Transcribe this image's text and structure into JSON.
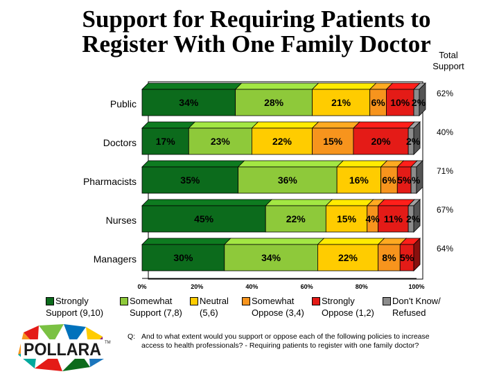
{
  "title_lines": [
    "Support for Requiring Patients to",
    "Register With One Family Doctor"
  ],
  "total_header_lines": [
    "Total",
    "Support"
  ],
  "chart_data": {
    "type": "bar",
    "orientation": "horizontal",
    "stacked": true,
    "categories": [
      "Public",
      "Doctors",
      "Pharmacists",
      "Nurses",
      "Managers"
    ],
    "series": [
      {
        "name": "Strongly Support (9,10)",
        "color": "#0c6b1c",
        "values": [
          34,
          17,
          35,
          45,
          30
        ],
        "labels": [
          "34%",
          "17%",
          "35%",
          "45%",
          "30%"
        ]
      },
      {
        "name": "Somewhat Support (7,8)",
        "color": "#8ec93a",
        "values": [
          28,
          23,
          36,
          22,
          34
        ],
        "labels": [
          "28%",
          "23%",
          "36%",
          "22%",
          "34%"
        ]
      },
      {
        "name": "Neutral (5,6)",
        "color": "#ffcc00",
        "values": [
          21,
          22,
          16,
          15,
          22
        ],
        "labels": [
          "21%",
          "22%",
          "16%",
          "15%",
          "22%"
        ]
      },
      {
        "name": "Somewhat Oppose (3,4)",
        "color": "#f7941d",
        "values": [
          6,
          15,
          6,
          4,
          8
        ],
        "labels": [
          "6%",
          "15%",
          "6%",
          "4%",
          "8%"
        ]
      },
      {
        "name": "Strongly Oppose (1,2)",
        "color": "#e41b17",
        "values": [
          10,
          20,
          5,
          11,
          5
        ],
        "labels": [
          "10%",
          "20%",
          "5%",
          "11%",
          "5%"
        ]
      },
      {
        "name": "Don't Know/ Refused",
        "color": "#8c8c8c",
        "values": [
          2,
          2,
          2,
          2,
          0
        ],
        "labels": [
          "2%",
          "2%",
          "%",
          "2%",
          ""
        ]
      }
    ],
    "total_support": [
      "62%",
      "40%",
      "71%",
      "67%",
      "64%"
    ],
    "x_ticks": [
      "0%",
      "20%",
      "40%",
      "60%",
      "80%",
      "100%"
    ],
    "xlim": [
      0,
      100
    ]
  },
  "legend": [
    {
      "lines": [
        "Strongly",
        "Support (9,10)"
      ],
      "color": "#0c6b1c"
    },
    {
      "lines": [
        "Somewhat",
        "Support (7,8)"
      ],
      "color": "#8ec93a"
    },
    {
      "lines": [
        "Neutral",
        "(5,6)"
      ],
      "color": "#ffcc00"
    },
    {
      "lines": [
        "Somewhat",
        "Oppose (3,4)"
      ],
      "color": "#f7941d"
    },
    {
      "lines": [
        "Strongly",
        "Oppose (1,2)"
      ],
      "color": "#e41b17"
    },
    {
      "lines": [
        "Don't Know/",
        "Refused"
      ],
      "color": "#8c8c8c"
    }
  ],
  "logo_text": "POLLARA",
  "logo_tm": "TM",
  "question": {
    "prefix": "Q:",
    "text": "And to what extent would you support or oppose each of the following policies to increase access to health professionals? - Requiring patients to register with one family doctor?"
  }
}
